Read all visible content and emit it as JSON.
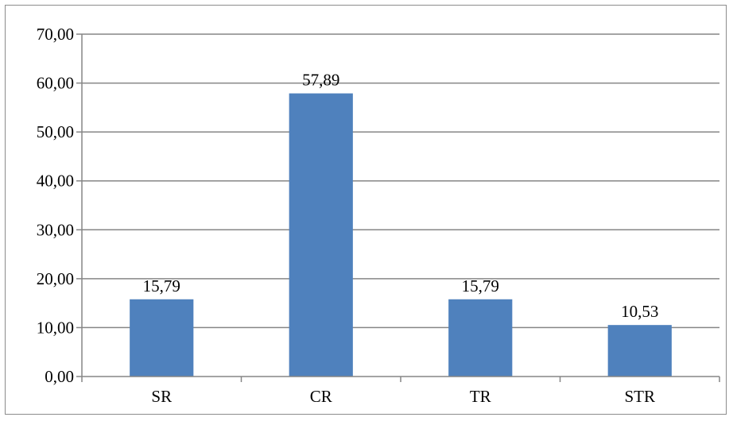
{
  "chart_data": {
    "type": "bar",
    "title": "",
    "xlabel": "",
    "ylabel": "",
    "categories": [
      "SR",
      "CR",
      "TR",
      "STR"
    ],
    "values": [
      15.79,
      57.89,
      15.79,
      10.53
    ],
    "value_labels": [
      "15,79",
      "57,89",
      "15,79",
      "10,53"
    ],
    "ylim": [
      0,
      70
    ],
    "y_ticks": [
      0,
      10,
      20,
      30,
      40,
      50,
      60,
      70
    ],
    "y_tick_labels": [
      "0,00",
      "10,00",
      "20,00",
      "30,00",
      "40,00",
      "50,00",
      "60,00",
      "70,00"
    ],
    "grid": true,
    "legend": "none",
    "bar_color": "#4f81bd",
    "grid_color": "#868686"
  }
}
